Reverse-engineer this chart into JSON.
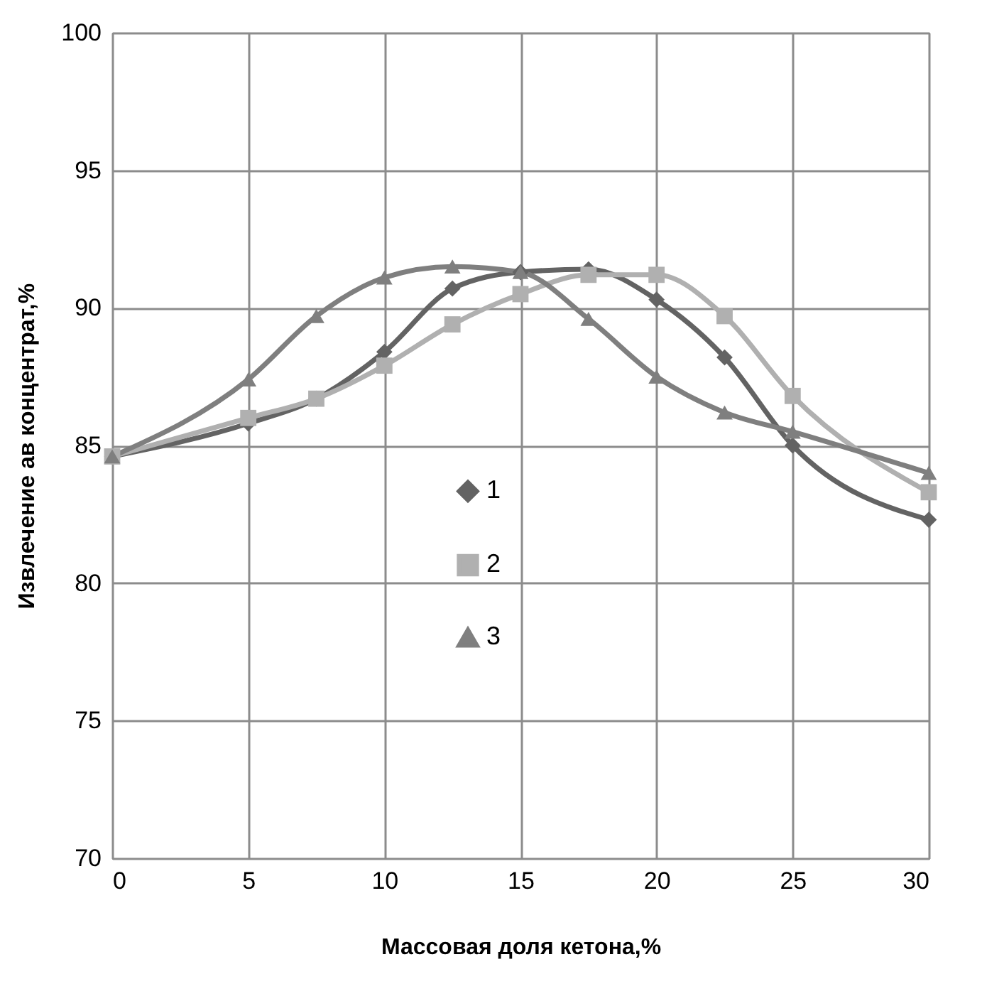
{
  "chart_data": {
    "type": "line",
    "xlabel": "Массовая доля кетона,%",
    "ylabel": "Извлечение ав концентрат,%",
    "x": [
      0,
      5,
      7.5,
      10,
      12.5,
      15,
      17.5,
      20,
      22.5,
      25,
      30
    ],
    "series": [
      {
        "name": "1",
        "color": "#636363",
        "marker": "diamond",
        "values": [
          84.6,
          85.8,
          86.7,
          88.4,
          90.7,
          91.3,
          91.4,
          90.3,
          88.2,
          85.0,
          82.3
        ]
      },
      {
        "name": "2",
        "color": "#b0b0b0",
        "marker": "square",
        "values": [
          84.6,
          86.0,
          86.7,
          87.9,
          89.4,
          90.5,
          91.2,
          91.2,
          89.7,
          86.8,
          83.3
        ]
      },
      {
        "name": "3",
        "color": "#7f7f7f",
        "marker": "triangle",
        "values": [
          84.6,
          87.4,
          89.7,
          91.1,
          91.5,
          91.3,
          89.6,
          87.5,
          86.2,
          85.5,
          84.0
        ]
      }
    ],
    "xlim": [
      0,
      30
    ],
    "xticks": [
      0,
      5,
      10,
      15,
      20,
      25,
      30
    ],
    "ylim": [
      70,
      100
    ],
    "yticks": [
      70,
      75,
      80,
      85,
      90,
      95,
      100
    ],
    "grid": true,
    "legend": "center",
    "line_style": "solid"
  }
}
